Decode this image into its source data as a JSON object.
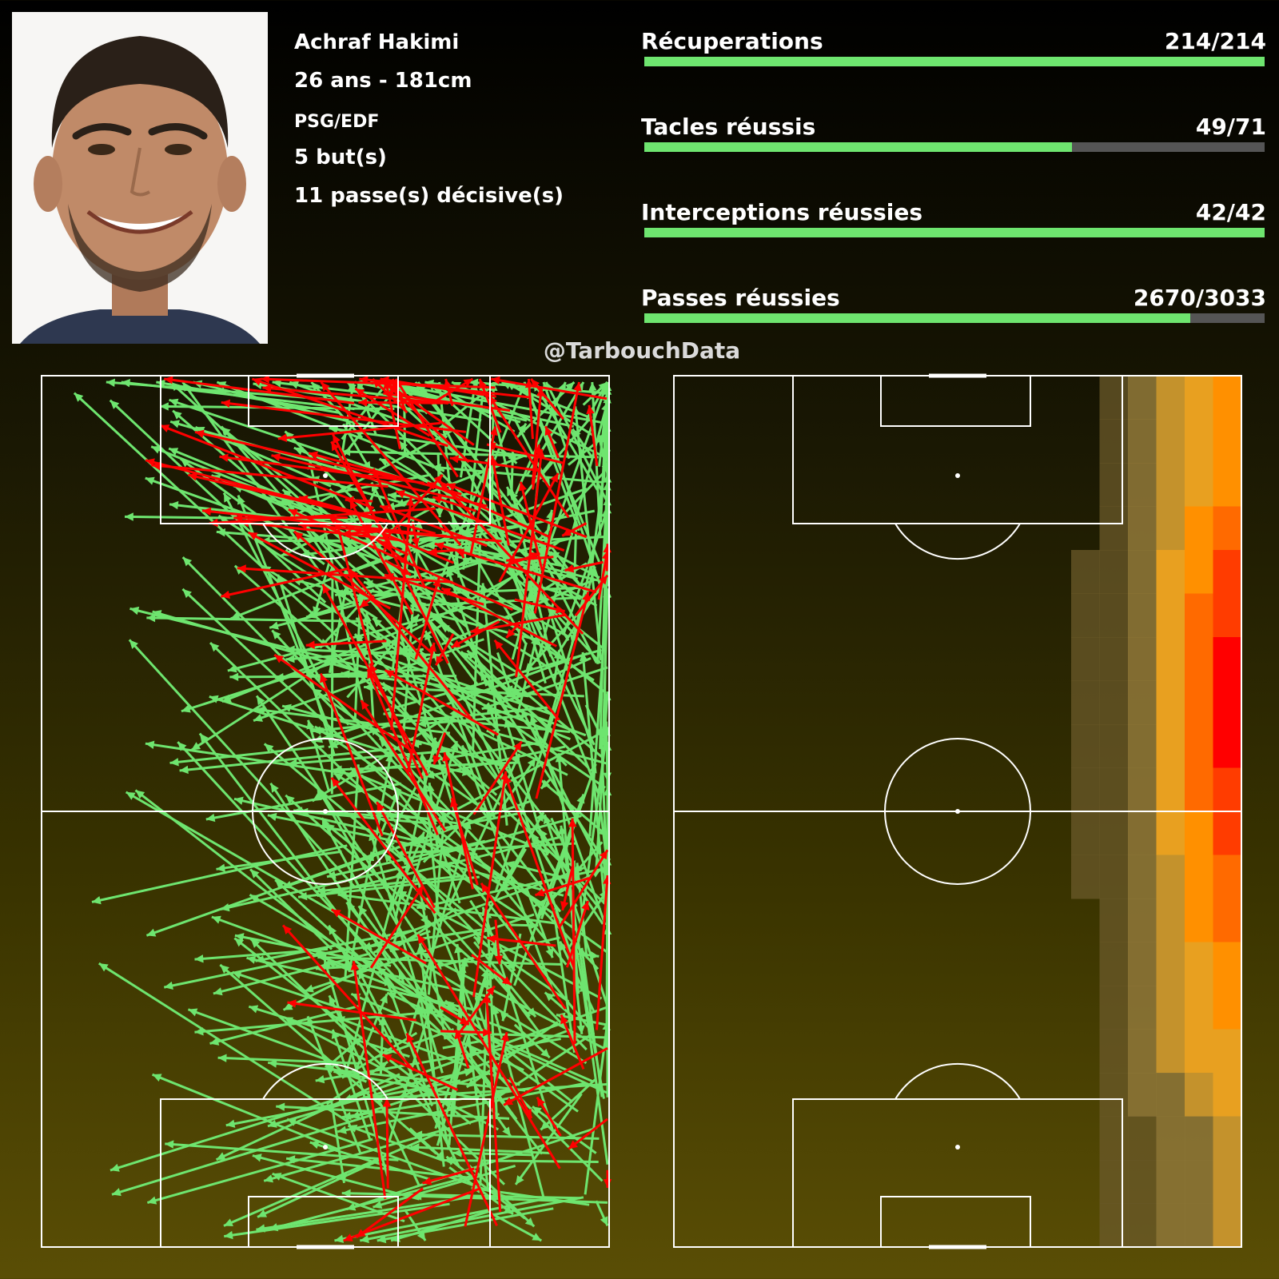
{
  "player": {
    "name": "Achraf Hakimi",
    "age_height": "26 ans - 181cm",
    "team": "PSG/EDF",
    "goals": "5 but(s)",
    "assists": "11 passe(s) décisive(s)"
  },
  "stats": [
    {
      "label": "Récuperations",
      "value": "214/214",
      "ratio": 1.0
    },
    {
      "label": "Tacles réussis",
      "value": "49/71",
      "ratio": 0.69
    },
    {
      "label": "Interceptions réussies",
      "value": "42/42",
      "ratio": 1.0
    },
    {
      "label": "Passes réussies",
      "value": "2670/3033",
      "ratio": 0.88
    }
  ],
  "credit": "@TarbouchData",
  "colors": {
    "success": "#6ee56f",
    "fail": "#ff0000",
    "track": "#555555",
    "pitch_lines": "#ffffff",
    "heat_low": "#6b5a2a",
    "heat_mid": "#e8a020",
    "heat_high": "#ff0000"
  }
}
